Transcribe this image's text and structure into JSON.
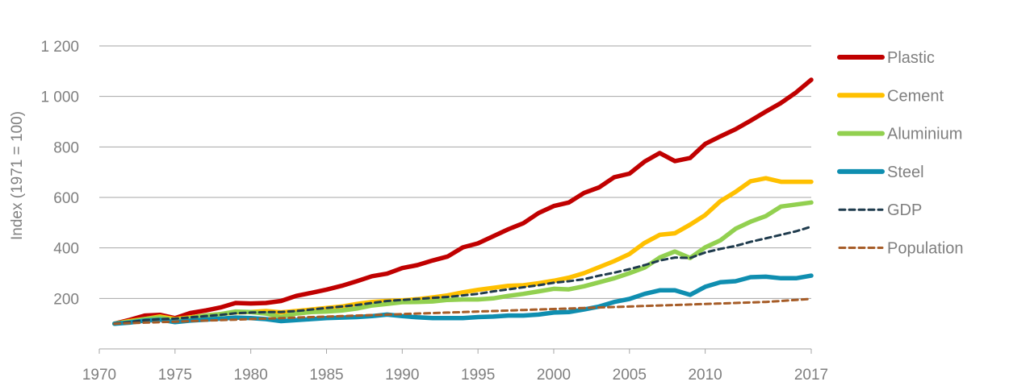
{
  "chart_data": {
    "type": "line",
    "title": "",
    "xlabel": "",
    "ylabel": "Index (1971 = 100)",
    "xlim": [
      1970,
      2017
    ],
    "ylim": [
      0,
      1200
    ],
    "x_ticks": [
      1970,
      1975,
      1980,
      1985,
      1990,
      1995,
      2000,
      2005,
      2010,
      2017
    ],
    "y_ticks": [
      {
        "value": 200,
        "label": "200"
      },
      {
        "value": 400,
        "label": "400"
      },
      {
        "value": 600,
        "label": "600"
      },
      {
        "value": 800,
        "label": "800"
      },
      {
        "value": 1000,
        "label": "1 000"
      },
      {
        "value": 1200,
        "label": "1 200"
      }
    ],
    "grid": true,
    "legend_position": "right",
    "x": [
      1971,
      1972,
      1973,
      1974,
      1975,
      1976,
      1977,
      1978,
      1979,
      1980,
      1981,
      1982,
      1983,
      1984,
      1985,
      1986,
      1987,
      1988,
      1989,
      1990,
      1991,
      1992,
      1993,
      1994,
      1995,
      1996,
      1997,
      1998,
      1999,
      2000,
      2001,
      2002,
      2003,
      2004,
      2005,
      2006,
      2007,
      2008,
      2009,
      2010,
      2011,
      2012,
      2013,
      2014,
      2015,
      2016,
      2017
    ],
    "series": [
      {
        "name": "Plastic",
        "color": "#c00000",
        "dash": false,
        "values": [
          100,
          115,
          132,
          135,
          122,
          142,
          152,
          164,
          182,
          180,
          182,
          190,
          210,
          222,
          235,
          250,
          268,
          288,
          298,
          320,
          332,
          350,
          366,
          402,
          418,
          446,
          474,
          498,
          538,
          566,
          580,
          618,
          640,
          680,
          694,
          742,
          776,
          744,
          756,
          812,
          842,
          870,
          904,
          940,
          974,
          1016,
          1066
        ]
      },
      {
        "name": "Cement",
        "color": "#ffc000",
        "dash": false,
        "values": [
          100,
          110,
          118,
          128,
          118,
          125,
          132,
          138,
          145,
          146,
          150,
          145,
          150,
          156,
          162,
          168,
          178,
          186,
          190,
          192,
          197,
          204,
          212,
          224,
          234,
          242,
          250,
          252,
          260,
          270,
          282,
          300,
          324,
          348,
          376,
          420,
          452,
          458,
          492,
          530,
          585,
          622,
          664,
          676,
          662,
          662,
          662
        ]
      },
      {
        "name": "Aluminium",
        "color": "#92d050",
        "dash": false,
        "values": [
          100,
          107,
          118,
          124,
          113,
          122,
          132,
          138,
          148,
          146,
          140,
          126,
          140,
          146,
          148,
          152,
          160,
          172,
          178,
          185,
          186,
          188,
          194,
          196,
          196,
          200,
          210,
          218,
          228,
          238,
          236,
          248,
          264,
          280,
          300,
          322,
          362,
          386,
          360,
          402,
          430,
          476,
          504,
          526,
          564,
          572,
          580
        ]
      },
      {
        "name": "Steel",
        "color": "#0f8eb0",
        "dash": false,
        "values": [
          100,
          104,
          112,
          116,
          106,
          112,
          116,
          120,
          124,
          122,
          118,
          110,
          114,
          118,
          122,
          124,
          126,
          130,
          136,
          130,
          125,
          122,
          122,
          122,
          126,
          128,
          132,
          132,
          136,
          144,
          146,
          156,
          168,
          186,
          198,
          218,
          232,
          232,
          214,
          246,
          264,
          268,
          284,
          286,
          280,
          280,
          290
        ]
      },
      {
        "name": "GDP",
        "color": "#1f3b4d",
        "dash": true,
        "values": [
          100,
          106,
          114,
          118,
          120,
          125,
          130,
          135,
          141,
          144,
          146,
          146,
          150,
          156,
          162,
          168,
          174,
          182,
          190,
          194,
          198,
          202,
          206,
          212,
          218,
          228,
          236,
          244,
          252,
          262,
          268,
          276,
          290,
          302,
          316,
          332,
          350,
          362,
          360,
          382,
          396,
          408,
          424,
          438,
          452,
          466,
          484
        ]
      },
      {
        "name": "Population",
        "color": "#a65c27",
        "dash": true,
        "values": [
          100,
          102,
          104,
          106,
          108,
          110,
          112,
          114,
          116,
          118,
          120,
          122,
          124,
          126,
          128,
          130,
          132,
          134,
          136,
          138,
          140,
          142,
          144,
          146,
          148,
          150,
          152,
          154,
          156,
          158,
          160,
          162,
          164,
          166,
          168,
          170,
          172,
          174,
          176,
          178,
          180,
          182,
          184,
          186,
          190,
          194,
          198
        ]
      }
    ]
  }
}
